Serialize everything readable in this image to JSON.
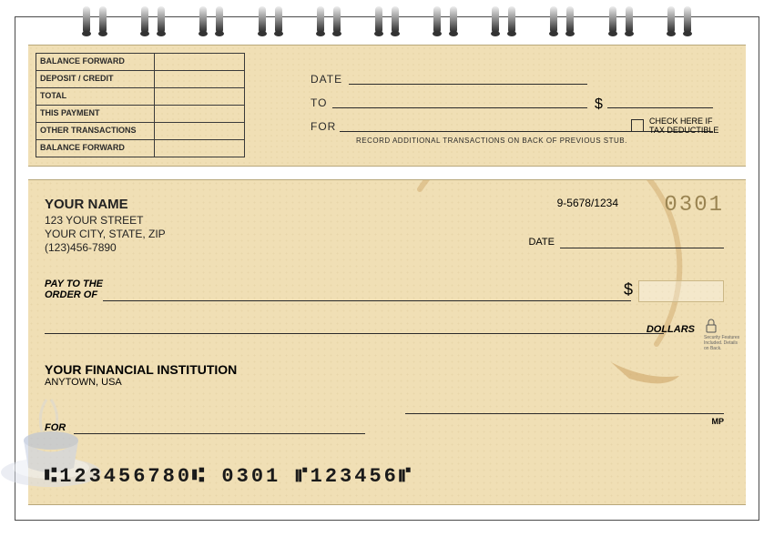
{
  "colors": {
    "check_bg": "#f0dfb5",
    "border": "#4a4a4a",
    "text": "#2a2a2a",
    "check_number": "#9a8452",
    "coffee_stain": "#c89b5a"
  },
  "spiral_count": 11,
  "stub": {
    "ledger_rows": [
      "BALANCE FORWARD",
      "DEPOSIT / CREDIT",
      "TOTAL",
      "THIS PAYMENT",
      "OTHER TRANSACTIONS",
      "BALANCE FORWARD"
    ],
    "date_label": "DATE",
    "to_label": "TO",
    "for_label": "FOR",
    "dollar": "$",
    "record_note": "RECORD ADDITIONAL TRANSACTIONS ON BACK OF PREVIOUS STUB.",
    "checkbox_label_line1": "CHECK HERE IF",
    "checkbox_label_line2": "TAX DEDUCTIBLE"
  },
  "check": {
    "payer_name": "YOUR NAME",
    "payer_street": "123 YOUR STREET",
    "payer_city": "YOUR CITY, STATE, ZIP",
    "payer_phone": "(123)456-7890",
    "routing_fraction": "9-5678/1234",
    "check_number": "0301",
    "date_label": "DATE",
    "pay_to_label_line1": "PAY TO THE",
    "pay_to_label_line2": "ORDER OF",
    "dollar": "$",
    "dollars_label": "DOLLARS",
    "security_text": "Security Features Included. Details on Back.",
    "bank_name": "YOUR FINANCIAL INSTITUTION",
    "bank_city": "ANYTOWN, USA",
    "for_label": "FOR",
    "mp": "MP",
    "micr": "⑆123456780⑆ 0301  ⑈123456⑈"
  }
}
